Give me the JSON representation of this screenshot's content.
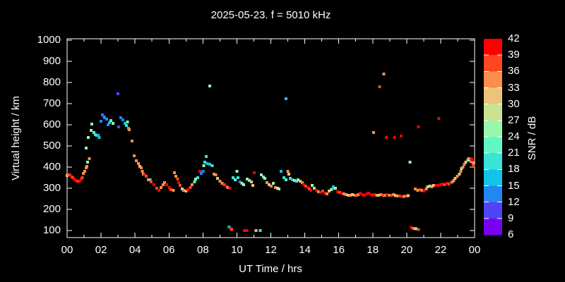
{
  "chart_data": {
    "type": "scatter",
    "title": "2025-05-23. f = 5010 kHz",
    "xlabel": "UT Time / hrs",
    "ylabel": "Virtual height / km",
    "xlim": [
      0,
      24
    ],
    "ylim": [
      100,
      1000
    ],
    "grid": false,
    "xticks": {
      "major_hours": [
        0,
        2,
        4,
        6,
        8,
        10,
        12,
        14,
        16,
        18,
        20,
        22,
        24
      ],
      "labels": [
        "00",
        "02",
        "04",
        "06",
        "08",
        "10",
        "12",
        "14",
        "16",
        "18",
        "20",
        "22",
        "00"
      ],
      "minor_hours": [
        1,
        3,
        5,
        7,
        9,
        11,
        13,
        15,
        17,
        19,
        21,
        23
      ]
    },
    "yticks": {
      "values": [
        100,
        200,
        300,
        400,
        500,
        600,
        700,
        800,
        900,
        1000
      ],
      "labels": [
        "100",
        "200",
        "300",
        "400",
        "500",
        "600",
        "700",
        "800",
        "900",
        "1000"
      ]
    },
    "colorbar": {
      "label": "SNR / dB",
      "range": [
        6,
        42
      ],
      "bin_size": 3,
      "tick_labels_top_to_bottom": [
        "42",
        "39",
        "36",
        "33",
        "30",
        "27",
        "24",
        "21",
        "18",
        "15",
        "12",
        "9",
        "6"
      ],
      "segment_colors_top_to_bottom": [
        "#fe0000",
        "#fc4720",
        "#fb8d4d",
        "#edc27b",
        "#c9e391",
        "#98f7aa",
        "#62f8c4",
        "#3be4d4",
        "#13c3e8",
        "#2387f2",
        "#4f45f6",
        "#7a00f2"
      ]
    },
    "point_format": [
      "ut_hr",
      "virtual_height_km",
      "snr_db"
    ],
    "points": [
      [
        0.0,
        360,
        31
      ],
      [
        0.05,
        363,
        34
      ],
      [
        0.15,
        363,
        37
      ],
      [
        0.25,
        357,
        40
      ],
      [
        0.33,
        350,
        37
      ],
      [
        0.42,
        343,
        40
      ],
      [
        0.5,
        337,
        40
      ],
      [
        0.58,
        333,
        40
      ],
      [
        0.67,
        333,
        37
      ],
      [
        0.75,
        335,
        40
      ],
      [
        0.83,
        343,
        40
      ],
      [
        0.9,
        350,
        37
      ],
      [
        0.96,
        370,
        34
      ],
      [
        1.05,
        380,
        34
      ],
      [
        1.12,
        397,
        34
      ],
      [
        1.17,
        403,
        34
      ],
      [
        1.2,
        423,
        25
      ],
      [
        1.3,
        440,
        34
      ],
      [
        1.12,
        490,
        25
      ],
      [
        1.25,
        540,
        25
      ],
      [
        1.42,
        573,
        25
      ],
      [
        1.46,
        603,
        25
      ],
      [
        1.58,
        563,
        22
      ],
      [
        1.67,
        553,
        19
      ],
      [
        1.75,
        550,
        19
      ],
      [
        1.83,
        550,
        16
      ],
      [
        1.9,
        540,
        16
      ],
      [
        2.0,
        617,
        13
      ],
      [
        2.08,
        647,
        13
      ],
      [
        2.17,
        640,
        10
      ],
      [
        2.21,
        633,
        13
      ],
      [
        2.33,
        627,
        13
      ],
      [
        2.42,
        600,
        13
      ],
      [
        2.5,
        610,
        16
      ],
      [
        2.58,
        620,
        22
      ],
      [
        2.7,
        607,
        25
      ],
      [
        3.0,
        747,
        10
      ],
      [
        3.04,
        590,
        10
      ],
      [
        3.17,
        633,
        13
      ],
      [
        3.29,
        623,
        13
      ],
      [
        3.42,
        607,
        16
      ],
      [
        3.5,
        597,
        19
      ],
      [
        3.56,
        613,
        22
      ],
      [
        3.62,
        583,
        16
      ],
      [
        3.67,
        577,
        34
      ],
      [
        3.83,
        523,
        34
      ],
      [
        3.96,
        453,
        34
      ],
      [
        4.08,
        430,
        34
      ],
      [
        4.21,
        417,
        34
      ],
      [
        4.29,
        403,
        31
      ],
      [
        4.37,
        397,
        34
      ],
      [
        4.42,
        380,
        34
      ],
      [
        4.5,
        367,
        34
      ],
      [
        4.58,
        363,
        40
      ],
      [
        4.66,
        357,
        37
      ],
      [
        4.79,
        340,
        34
      ],
      [
        4.88,
        340,
        19
      ],
      [
        4.95,
        330,
        37
      ],
      [
        5.12,
        317,
        40
      ],
      [
        5.29,
        300,
        37
      ],
      [
        5.41,
        290,
        40
      ],
      [
        5.54,
        303,
        34
      ],
      [
        5.66,
        317,
        34
      ],
      [
        5.75,
        327,
        34
      ],
      [
        5.87,
        317,
        40
      ],
      [
        6.0,
        303,
        40
      ],
      [
        6.12,
        293,
        37
      ],
      [
        6.25,
        290,
        34
      ],
      [
        6.33,
        373,
        34
      ],
      [
        6.41,
        357,
        34
      ],
      [
        6.5,
        343,
        37
      ],
      [
        6.58,
        327,
        40
      ],
      [
        6.66,
        313,
        37
      ],
      [
        6.78,
        297,
        25
      ],
      [
        6.87,
        290,
        34
      ],
      [
        7.0,
        287,
        31
      ],
      [
        7.12,
        293,
        40
      ],
      [
        7.25,
        303,
        37
      ],
      [
        7.37,
        317,
        34
      ],
      [
        7.5,
        330,
        22
      ],
      [
        7.58,
        343,
        25
      ],
      [
        7.7,
        350,
        19
      ],
      [
        7.83,
        380,
        40
      ],
      [
        7.9,
        370,
        13
      ],
      [
        8.0,
        380,
        13
      ],
      [
        8.04,
        407,
        25
      ],
      [
        8.12,
        423,
        19
      ],
      [
        8.2,
        450,
        19
      ],
      [
        8.25,
        417,
        16
      ],
      [
        8.4,
        413,
        16
      ],
      [
        8.4,
        783,
        25
      ],
      [
        8.54,
        407,
        19
      ],
      [
        8.66,
        367,
        34
      ],
      [
        8.75,
        363,
        34
      ],
      [
        8.87,
        347,
        31
      ],
      [
        9.0,
        333,
        34
      ],
      [
        9.12,
        323,
        34
      ],
      [
        9.25,
        317,
        37
      ],
      [
        9.37,
        310,
        40
      ],
      [
        9.46,
        303,
        34
      ],
      [
        9.58,
        300,
        40
      ],
      [
        9.54,
        117,
        16
      ],
      [
        9.62,
        110,
        40
      ],
      [
        9.7,
        105,
        37
      ],
      [
        10.45,
        100,
        40
      ],
      [
        10.58,
        100,
        40
      ],
      [
        11.12,
        100,
        31
      ],
      [
        11.37,
        100,
        19
      ],
      [
        9.77,
        350,
        19
      ],
      [
        9.9,
        340,
        22
      ],
      [
        10.0,
        380,
        25
      ],
      [
        10.07,
        350,
        19
      ],
      [
        10.2,
        330,
        13
      ],
      [
        10.3,
        323,
        25
      ],
      [
        10.4,
        317,
        25
      ],
      [
        10.6,
        343,
        25
      ],
      [
        10.73,
        337,
        22
      ],
      [
        10.85,
        330,
        31
      ],
      [
        10.94,
        313,
        31
      ],
      [
        11.02,
        373,
        40
      ],
      [
        11.44,
        363,
        25
      ],
      [
        11.56,
        353,
        22
      ],
      [
        11.65,
        347,
        25
      ],
      [
        11.77,
        327,
        34
      ],
      [
        11.9,
        317,
        31
      ],
      [
        12.02,
        310,
        34
      ],
      [
        12.15,
        323,
        25
      ],
      [
        12.27,
        303,
        34
      ],
      [
        12.4,
        300,
        28
      ],
      [
        12.48,
        297,
        25
      ],
      [
        12.6,
        380,
        16
      ],
      [
        12.77,
        350,
        19
      ],
      [
        12.9,
        340,
        22
      ],
      [
        12.9,
        723,
        16
      ],
      [
        13.0,
        380,
        34
      ],
      [
        13.06,
        367,
        31
      ],
      [
        13.15,
        347,
        19
      ],
      [
        13.27,
        340,
        16
      ],
      [
        13.4,
        337,
        25
      ],
      [
        13.52,
        333,
        19
      ],
      [
        13.6,
        340,
        25
      ],
      [
        13.73,
        333,
        31
      ],
      [
        13.85,
        327,
        34
      ],
      [
        13.94,
        317,
        40
      ],
      [
        14.06,
        310,
        37
      ],
      [
        14.19,
        303,
        40
      ],
      [
        14.27,
        297,
        37
      ],
      [
        14.35,
        290,
        40
      ],
      [
        14.44,
        313,
        25
      ],
      [
        14.56,
        300,
        31
      ],
      [
        14.68,
        290,
        40
      ],
      [
        14.81,
        283,
        34
      ],
      [
        14.94,
        280,
        40
      ],
      [
        15.06,
        287,
        37
      ],
      [
        15.19,
        277,
        40
      ],
      [
        15.31,
        273,
        34
      ],
      [
        15.44,
        287,
        31
      ],
      [
        15.56,
        293,
        25
      ],
      [
        15.65,
        300,
        19
      ],
      [
        15.69,
        307,
        16
      ],
      [
        15.81,
        300,
        25
      ],
      [
        15.94,
        283,
        40
      ],
      [
        16.06,
        280,
        37
      ],
      [
        16.19,
        277,
        40
      ],
      [
        16.31,
        273,
        34
      ],
      [
        16.44,
        270,
        34
      ],
      [
        16.56,
        267,
        31
      ],
      [
        16.69,
        267,
        34
      ],
      [
        16.81,
        270,
        31
      ],
      [
        16.94,
        267,
        34
      ],
      [
        17.06,
        267,
        37
      ],
      [
        17.15,
        270,
        34
      ],
      [
        17.27,
        277,
        40
      ],
      [
        17.4,
        270,
        40
      ],
      [
        17.52,
        267,
        40
      ],
      [
        17.65,
        273,
        40
      ],
      [
        17.77,
        277,
        40
      ],
      [
        17.9,
        270,
        40
      ],
      [
        18.02,
        267,
        40
      ],
      [
        18.1,
        270,
        40
      ],
      [
        18.06,
        563,
        34
      ],
      [
        18.4,
        780,
        37
      ],
      [
        18.65,
        840,
        34
      ],
      [
        18.8,
        540,
        40
      ],
      [
        19.27,
        540,
        40
      ],
      [
        19.68,
        547,
        40
      ],
      [
        20.2,
        423,
        25
      ],
      [
        20.7,
        590,
        40
      ],
      [
        21.9,
        630,
        40
      ],
      [
        18.23,
        267,
        34
      ],
      [
        18.35,
        267,
        31
      ],
      [
        18.48,
        270,
        34
      ],
      [
        18.6,
        267,
        37
      ],
      [
        18.73,
        267,
        34
      ],
      [
        18.85,
        270,
        40
      ],
      [
        18.98,
        267,
        34
      ],
      [
        19.1,
        267,
        37
      ],
      [
        19.23,
        270,
        34
      ],
      [
        19.35,
        265,
        31
      ],
      [
        19.48,
        263,
        34
      ],
      [
        19.6,
        263,
        37
      ],
      [
        19.73,
        260,
        40
      ],
      [
        19.85,
        262,
        34
      ],
      [
        19.98,
        263,
        37
      ],
      [
        20.1,
        265,
        31
      ],
      [
        20.25,
        115,
        40
      ],
      [
        20.4,
        110,
        34
      ],
      [
        20.55,
        108,
        25
      ],
      [
        20.7,
        105,
        37
      ],
      [
        20.5,
        297,
        34
      ],
      [
        20.65,
        290,
        34
      ],
      [
        20.77,
        293,
        37
      ],
      [
        20.9,
        290,
        34
      ],
      [
        21.02,
        287,
        40
      ],
      [
        21.15,
        297,
        34
      ],
      [
        21.23,
        307,
        31
      ],
      [
        21.35,
        310,
        25
      ],
      [
        21.48,
        307,
        34
      ],
      [
        21.56,
        313,
        31
      ],
      [
        21.73,
        313,
        40
      ],
      [
        21.85,
        313,
        40
      ],
      [
        21.98,
        317,
        40
      ],
      [
        22.1,
        320,
        40
      ],
      [
        22.23,
        317,
        37
      ],
      [
        22.35,
        323,
        40
      ],
      [
        22.48,
        320,
        37
      ],
      [
        22.6,
        327,
        40
      ],
      [
        22.69,
        330,
        34
      ],
      [
        22.77,
        337,
        34
      ],
      [
        22.85,
        347,
        31
      ],
      [
        22.98,
        357,
        34
      ],
      [
        23.1,
        367,
        31
      ],
      [
        23.19,
        380,
        34
      ],
      [
        23.23,
        393,
        25
      ],
      [
        23.31,
        400,
        34
      ],
      [
        23.4,
        413,
        34
      ],
      [
        23.48,
        423,
        31
      ],
      [
        23.6,
        433,
        25
      ],
      [
        23.65,
        440,
        34
      ],
      [
        23.77,
        427,
        34
      ],
      [
        23.81,
        440,
        40
      ],
      [
        23.85,
        433,
        40
      ],
      [
        23.9,
        420,
        34
      ],
      [
        23.94,
        407,
        37
      ]
    ]
  }
}
